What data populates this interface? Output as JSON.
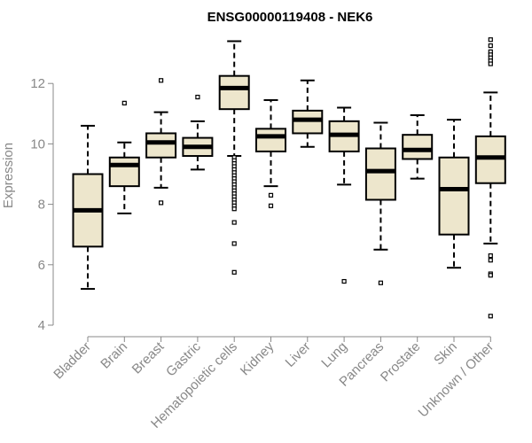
{
  "chart_data": {
    "type": "boxplot",
    "title": "ENSG00000119408 - NEK6",
    "xlabel": "",
    "ylabel": "Expression",
    "ylim": [
      4,
      13.6
    ],
    "yticks": [
      4,
      6,
      8,
      10,
      12
    ],
    "box_fill": "#ede6cc",
    "categories": [
      "Bladder",
      "Brain",
      "Breast",
      "Gastric",
      "Hematopoietic cells",
      "Kidney",
      "Liver",
      "Lung",
      "Pancreas",
      "Prostate",
      "Skin",
      "Unknown / Other"
    ],
    "boxes": [
      {
        "name": "Bladder",
        "min": 5.2,
        "q1": 6.6,
        "median": 7.8,
        "q3": 9.0,
        "max": 10.6,
        "outliers": []
      },
      {
        "name": "Brain",
        "min": 7.7,
        "q1": 8.6,
        "median": 9.3,
        "q3": 9.55,
        "max": 10.05,
        "outliers": [
          11.35
        ]
      },
      {
        "name": "Breast",
        "min": 8.55,
        "q1": 9.55,
        "median": 10.05,
        "q3": 10.35,
        "max": 11.05,
        "outliers": [
          12.1,
          8.05
        ]
      },
      {
        "name": "Gastric",
        "min": 9.15,
        "q1": 9.6,
        "median": 9.9,
        "q3": 10.2,
        "max": 10.75,
        "outliers": [
          11.55
        ]
      },
      {
        "name": "Hematopoietic cells",
        "min": 9.6,
        "q1": 11.15,
        "median": 11.85,
        "q3": 12.25,
        "max": 13.4,
        "outliers": [
          9.55,
          9.45,
          9.35,
          9.25,
          9.15,
          9.05,
          8.95,
          8.85,
          8.75,
          8.65,
          8.55,
          8.45,
          8.35,
          8.25,
          8.15,
          8.05,
          7.95,
          7.85,
          7.4,
          6.7,
          5.75
        ]
      },
      {
        "name": "Kidney",
        "min": 8.6,
        "q1": 9.75,
        "median": 10.25,
        "q3": 10.5,
        "max": 11.45,
        "outliers": [
          8.3,
          7.95
        ]
      },
      {
        "name": "Liver",
        "min": 9.9,
        "q1": 10.35,
        "median": 10.8,
        "q3": 11.1,
        "max": 12.1,
        "outliers": []
      },
      {
        "name": "Lung",
        "min": 8.65,
        "q1": 9.75,
        "median": 10.3,
        "q3": 10.75,
        "max": 11.2,
        "outliers": [
          5.45
        ]
      },
      {
        "name": "Pancreas",
        "min": 6.5,
        "q1": 8.15,
        "median": 9.1,
        "q3": 9.85,
        "max": 10.7,
        "outliers": [
          5.4
        ]
      },
      {
        "name": "Prostate",
        "min": 8.85,
        "q1": 9.5,
        "median": 9.8,
        "q3": 10.3,
        "max": 10.95,
        "outliers": []
      },
      {
        "name": "Skin",
        "min": 5.9,
        "q1": 7.0,
        "median": 8.5,
        "q3": 9.55,
        "max": 10.8,
        "outliers": []
      },
      {
        "name": "Unknown / Other",
        "min": 6.7,
        "q1": 8.7,
        "median": 9.55,
        "q3": 10.25,
        "max": 11.7,
        "outliers": [
          13.45,
          13.25,
          13.05,
          12.95,
          12.85,
          12.75,
          12.65,
          6.3,
          6.15,
          5.7,
          5.65,
          4.3
        ]
      }
    ]
  }
}
